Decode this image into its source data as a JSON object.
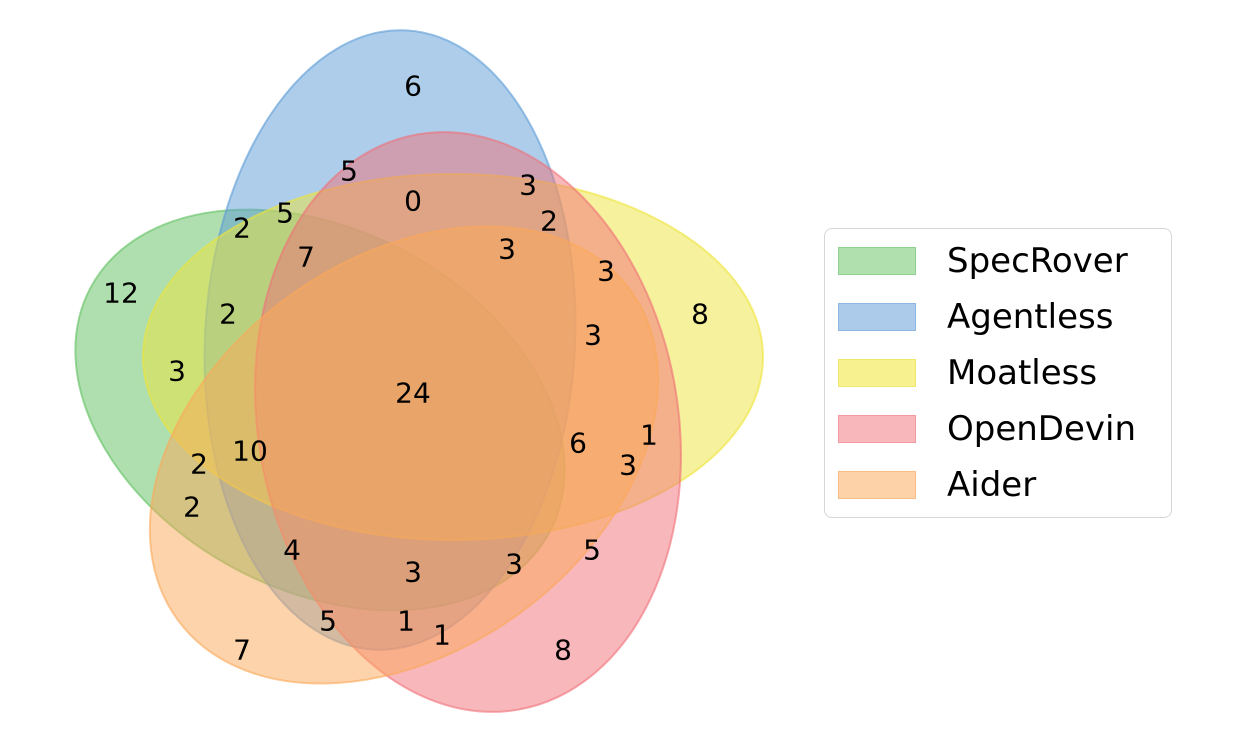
{
  "chart_data": {
    "type": "venn",
    "sets": [
      {
        "name": "SpecRover",
        "color": "#5fbf5f"
      },
      {
        "name": "Agentless",
        "color": "#5b9bd5"
      },
      {
        "name": "Moatless",
        "color": "#eee439"
      },
      {
        "name": "OpenDevin",
        "color": "#f07078"
      },
      {
        "name": "Aider",
        "color": "#fba858"
      }
    ],
    "region_counts": [
      {
        "sets": [
          "SpecRover"
        ],
        "value": 12
      },
      {
        "sets": [
          "Agentless"
        ],
        "value": 6
      },
      {
        "sets": [
          "Moatless"
        ],
        "value": 8
      },
      {
        "sets": [
          "OpenDevin"
        ],
        "value": 8
      },
      {
        "sets": [
          "Aider"
        ],
        "value": 7
      },
      {
        "sets": [
          "SpecRover",
          "Agentless",
          "Moatless",
          "OpenDevin",
          "Aider"
        ],
        "value": 24
      }
    ],
    "region_labels": [
      "6",
      "5",
      "0",
      "3",
      "5",
      "2",
      "2",
      "7",
      "3",
      "3",
      "12",
      "2",
      "3",
      "8",
      "3",
      "24",
      "10",
      "6",
      "1",
      "2",
      "3",
      "2",
      "4",
      "3",
      "3",
      "5",
      "5",
      "1",
      "1",
      "7",
      "8"
    ]
  },
  "legend": {
    "items": [
      {
        "label": "SpecRover",
        "fill": "#afe0ae",
        "edge": "#8fd08e"
      },
      {
        "label": "Agentless",
        "fill": "#accbea",
        "edge": "#8db8e2"
      },
      {
        "label": "Moatless",
        "fill": "#f7f28f",
        "edge": "#efe86a"
      },
      {
        "label": "OpenDevin",
        "fill": "#f8b8bb",
        "edge": "#f29aa0"
      },
      {
        "label": "Aider",
        "fill": "#fdd2a8",
        "edge": "#fbbd86"
      }
    ]
  }
}
